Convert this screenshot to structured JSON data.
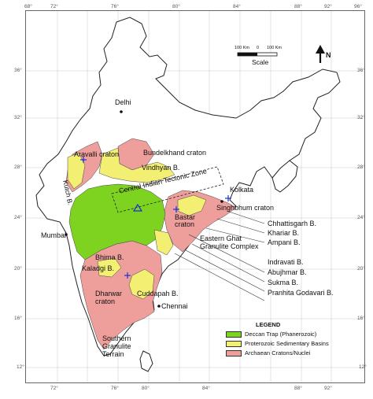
{
  "colors": {
    "deccan_trap": "#7ed321",
    "proterozoic": "#f3ef73",
    "archaean": "#ef9f9b",
    "land": "#ffffff",
    "border": "#222222",
    "marker": "#1b2fd6"
  },
  "graticule": {
    "lon_labels": [
      "68°",
      "72°",
      "76°",
      "80°",
      "84°",
      "88°",
      "92°",
      "96°"
    ],
    "lat_labels": [
      "36°",
      "32°",
      "28°",
      "24°",
      "20°",
      "16°",
      "12°",
      "8°"
    ]
  },
  "north": {
    "label": "N"
  },
  "scale": {
    "ticks": [
      "100 Km",
      "0",
      "100 Km"
    ],
    "label": "Scale"
  },
  "labels": {
    "delhi": "Delhi",
    "aravalli": "Aravalli craton",
    "bundelkhand": "Bundelkhand craton",
    "vindhyan": "Vindhyan B.",
    "kutch": "Kutch B.",
    "citz": "Central Indian Tectonic Zone",
    "kolkata": "Kolkata",
    "singhbhum": "Singhbhum craton",
    "bastar": "Bastar craton",
    "mumbai": "Mumbai",
    "chhattisgarh": "Chhattisgarh B.",
    "khariar": "Khariar B.",
    "ampani": "Ampani B.",
    "eastern_ghat": "Eastern Ghat Granulite Complex",
    "indravati": "Indravati B.",
    "abujhmar": "Abujhmar B.",
    "sukma": "Sukma B.",
    "pranhita": "Pranhita Godavari B.",
    "bhima": "Bhima B.",
    "kaladgi": "Kaladgi B.",
    "dharwar": "Dharwar craton",
    "cuddapah": "Cuddapah B.",
    "chennai": "Chennai",
    "southern": "Southern Granulite Terrain"
  },
  "legend": {
    "title": "LEGEND",
    "items": [
      {
        "label": "Deccan Trap (Phanerozoic)",
        "color": "#7ed321"
      },
      {
        "label": "Proterozoic Sedimentary Basins",
        "color": "#f3ef73"
      },
      {
        "label": "Archaean Cratons/Nuclei",
        "color": "#ef9f9b"
      }
    ]
  }
}
